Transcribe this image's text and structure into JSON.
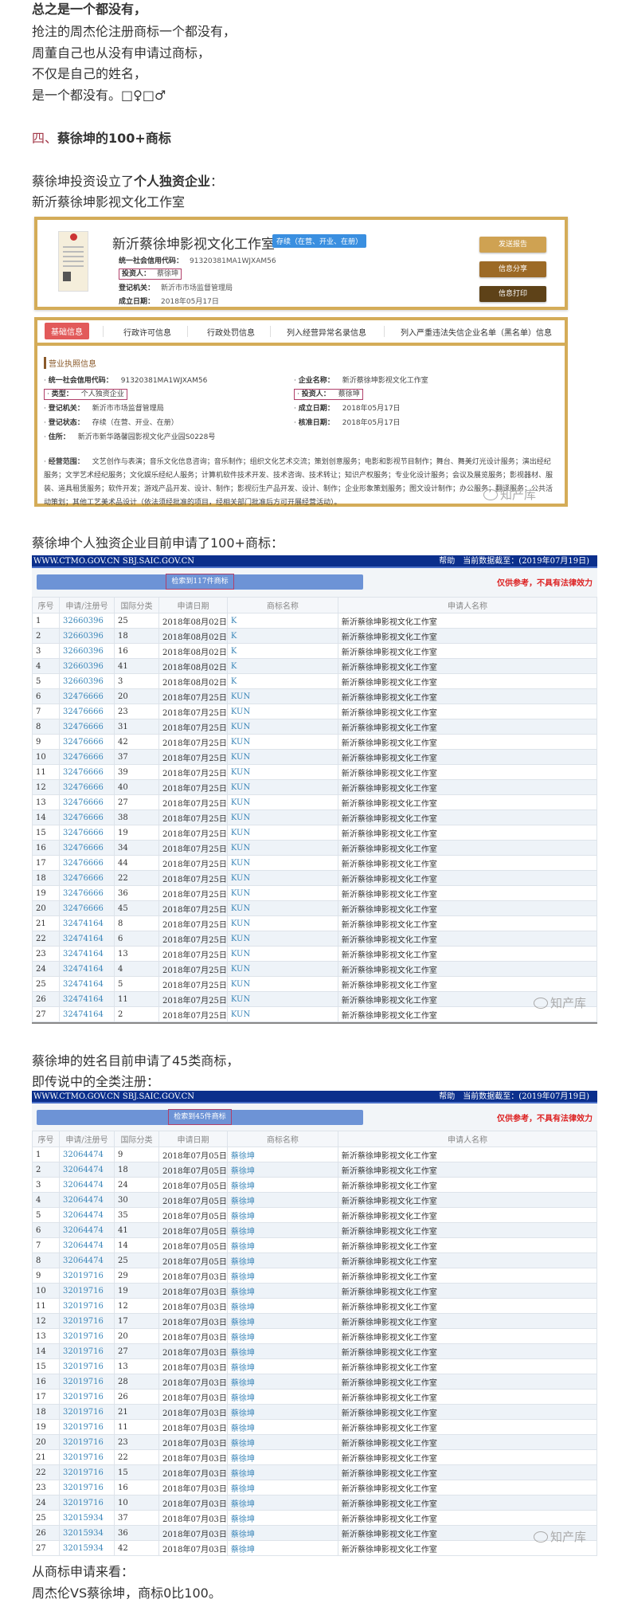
{
  "intro": {
    "line1": "总之是一个都没有，",
    "line2": "抢注的周杰伦注册商标一个都没有，",
    "line3": "周董自己也从没有申请过商标，",
    "line4": "不仅是自己的姓名，",
    "line5": "是一个都没有。□♀□♂"
  },
  "section": {
    "number": "四、",
    "title": "蔡徐坤的100+商标"
  },
  "para1": {
    "prefix": "蔡徐坤投资设立了",
    "bold": "个人独资企业",
    "suffix": "：",
    "line2": "新沂蔡徐坤影视文化工作室"
  },
  "company_card": {
    "name": "新沂蔡徐坤影视文化工作室",
    "status": "存续（在营、开业、在册）",
    "fields": [
      {
        "label": "统一社会信用代码：",
        "value": "91320381MA1WJXAM56"
      },
      {
        "label": "投资人：",
        "value": "蔡徐坤"
      },
      {
        "label": "登记机关：",
        "value": "新沂市市场监督管理局"
      },
      {
        "label": "成立日期：",
        "value": "2018年05月17日"
      }
    ],
    "buttons": [
      {
        "label": "发送报告",
        "color": "#cfa252"
      },
      {
        "label": "信息分享",
        "color": "#9c6a26"
      },
      {
        "label": "信息打印",
        "color": "#5e4218"
      }
    ]
  },
  "detail_card": {
    "tabs": [
      "基础信息",
      "行政许可信息",
      "行政处罚信息",
      "列入经营异常名录信息",
      "列入严重违法失信企业名单（黑名单）信息"
    ],
    "section_title": "营业执照信息",
    "left": [
      {
        "label": "统一社会信用代码：",
        "value": "91320381MA1WJXAM56"
      },
      {
        "label": "类型：",
        "value": "个人独资企业"
      },
      {
        "label": "登记机关：",
        "value": "新沂市市场监督管理局"
      },
      {
        "label": "登记状态：",
        "value": "存续（在营、开业、在册）"
      },
      {
        "label": "住所：",
        "value": "新沂市新华路馨园影视文化产业园S0228号"
      }
    ],
    "right": [
      {
        "label": "企业名称：",
        "value": "新沂蔡徐坤影视文化工作室"
      },
      {
        "label": "投资人：",
        "value": "蔡徐坤"
      },
      {
        "label": "成立日期：",
        "value": "2018年05月17日"
      },
      {
        "label": "核准日期：",
        "value": "2018年05月17日"
      }
    ],
    "scope_label": "经营范围：",
    "scope": "文艺创作与表演；音乐文化信息咨询；音乐制作；组织文化艺术交流；策划创意服务；电影和影视节目制作；舞台、舞美灯光设计服务；演出经纪服务；文学艺术经纪服务；文化娱乐经纪人服务；计算机软件技术开发、技术咨询、技术转让；知识产权服务；专业化设计服务；会议及展览服务；影视器材、服装、道具租赁服务；软件开发；游戏产品开发、设计、制作；影视衍生产品开发、设计、制作；企业形象策划服务；图文设计制作；办公服务；翻译服务；公共活动策划；其他工艺美术品设计（依法须经批准的项目，经相关部门批准后方可开展经营活动）。"
  },
  "watermark": "知产库",
  "para2": "蔡徐坤个人独资企业目前申请了100+商标：",
  "common": {
    "site": "WWW.CTMO.GOV.CN SBJ.SAIC.GOV.CN",
    "help": "帮助",
    "data_date": "当前数据截至：(2019年07月19日)",
    "note": "仅供参考，不具有法律效力",
    "headers": [
      "序号",
      "申请/注册号",
      "国际分类",
      "申请日期",
      "商标名称",
      "申请人名称"
    ]
  },
  "table1": {
    "result": "检索到117件商标",
    "rows": [
      [
        "1",
        "32660396",
        "25",
        "2018年08月02日",
        "K",
        "新沂蔡徐坤影视文化工作室"
      ],
      [
        "2",
        "32660396",
        "18",
        "2018年08月02日",
        "K",
        "新沂蔡徐坤影视文化工作室"
      ],
      [
        "3",
        "32660396",
        "16",
        "2018年08月02日",
        "K",
        "新沂蔡徐坤影视文化工作室"
      ],
      [
        "4",
        "32660396",
        "41",
        "2018年08月02日",
        "K",
        "新沂蔡徐坤影视文化工作室"
      ],
      [
        "5",
        "32660396",
        "3",
        "2018年08月02日",
        "K",
        "新沂蔡徐坤影视文化工作室"
      ],
      [
        "6",
        "32476666",
        "20",
        "2018年07月25日",
        "KUN",
        "新沂蔡徐坤影视文化工作室"
      ],
      [
        "7",
        "32476666",
        "23",
        "2018年07月25日",
        "KUN",
        "新沂蔡徐坤影视文化工作室"
      ],
      [
        "8",
        "32476666",
        "31",
        "2018年07月25日",
        "KUN",
        "新沂蔡徐坤影视文化工作室"
      ],
      [
        "9",
        "32476666",
        "42",
        "2018年07月25日",
        "KUN",
        "新沂蔡徐坤影视文化工作室"
      ],
      [
        "10",
        "32476666",
        "37",
        "2018年07月25日",
        "KUN",
        "新沂蔡徐坤影视文化工作室"
      ],
      [
        "11",
        "32476666",
        "39",
        "2018年07月25日",
        "KUN",
        "新沂蔡徐坤影视文化工作室"
      ],
      [
        "12",
        "32476666",
        "40",
        "2018年07月25日",
        "KUN",
        "新沂蔡徐坤影视文化工作室"
      ],
      [
        "13",
        "32476666",
        "27",
        "2018年07月25日",
        "KUN",
        "新沂蔡徐坤影视文化工作室"
      ],
      [
        "14",
        "32476666",
        "38",
        "2018年07月25日",
        "KUN",
        "新沂蔡徐坤影视文化工作室"
      ],
      [
        "15",
        "32476666",
        "19",
        "2018年07月25日",
        "KUN",
        "新沂蔡徐坤影视文化工作室"
      ],
      [
        "16",
        "32476666",
        "34",
        "2018年07月25日",
        "KUN",
        "新沂蔡徐坤影视文化工作室"
      ],
      [
        "17",
        "32476666",
        "44",
        "2018年07月25日",
        "KUN",
        "新沂蔡徐坤影视文化工作室"
      ],
      [
        "18",
        "32476666",
        "22",
        "2018年07月25日",
        "KUN",
        "新沂蔡徐坤影视文化工作室"
      ],
      [
        "19",
        "32476666",
        "36",
        "2018年07月25日",
        "KUN",
        "新沂蔡徐坤影视文化工作室"
      ],
      [
        "20",
        "32476666",
        "45",
        "2018年07月25日",
        "KUN",
        "新沂蔡徐坤影视文化工作室"
      ],
      [
        "21",
        "32474164",
        "8",
        "2018年07月25日",
        "KUN",
        "新沂蔡徐坤影视文化工作室"
      ],
      [
        "22",
        "32474164",
        "6",
        "2018年07月25日",
        "KUN",
        "新沂蔡徐坤影视文化工作室"
      ],
      [
        "23",
        "32474164",
        "13",
        "2018年07月25日",
        "KUN",
        "新沂蔡徐坤影视文化工作室"
      ],
      [
        "24",
        "32474164",
        "4",
        "2018年07月25日",
        "KUN",
        "新沂蔡徐坤影视文化工作室"
      ],
      [
        "25",
        "32474164",
        "5",
        "2018年07月25日",
        "KUN",
        "新沂蔡徐坤影视文化工作室"
      ],
      [
        "26",
        "32474164",
        "11",
        "2018年07月25日",
        "KUN",
        "新沂蔡徐坤影视文化工作室"
      ],
      [
        "27",
        "32474164",
        "2",
        "2018年07月25日",
        "KUN",
        "新沂蔡徐坤影视文化工作室"
      ]
    ]
  },
  "para3": {
    "line1": "蔡徐坤的姓名目前申请了45类商标，",
    "line2": "即传说中的全类注册："
  },
  "table2": {
    "result": "检索到45件商标",
    "rows": [
      [
        "1",
        "32064474",
        "9",
        "2018年07月05日",
        "蔡徐坤",
        "新沂蔡徐坤影视文化工作室"
      ],
      [
        "2",
        "32064474",
        "18",
        "2018年07月05日",
        "蔡徐坤",
        "新沂蔡徐坤影视文化工作室"
      ],
      [
        "3",
        "32064474",
        "24",
        "2018年07月05日",
        "蔡徐坤",
        "新沂蔡徐坤影视文化工作室"
      ],
      [
        "4",
        "32064474",
        "30",
        "2018年07月05日",
        "蔡徐坤",
        "新沂蔡徐坤影视文化工作室"
      ],
      [
        "5",
        "32064474",
        "35",
        "2018年07月05日",
        "蔡徐坤",
        "新沂蔡徐坤影视文化工作室"
      ],
      [
        "6",
        "32064474",
        "41",
        "2018年07月05日",
        "蔡徐坤",
        "新沂蔡徐坤影视文化工作室"
      ],
      [
        "7",
        "32064474",
        "14",
        "2018年07月05日",
        "蔡徐坤",
        "新沂蔡徐坤影视文化工作室"
      ],
      [
        "8",
        "32064474",
        "25",
        "2018年07月05日",
        "蔡徐坤",
        "新沂蔡徐坤影视文化工作室"
      ],
      [
        "9",
        "32019716",
        "29",
        "2018年07月03日",
        "蔡徐坤",
        "新沂蔡徐坤影视文化工作室"
      ],
      [
        "10",
        "32019716",
        "19",
        "2018年07月03日",
        "蔡徐坤",
        "新沂蔡徐坤影视文化工作室"
      ],
      [
        "11",
        "32019716",
        "12",
        "2018年07月03日",
        "蔡徐坤",
        "新沂蔡徐坤影视文化工作室"
      ],
      [
        "12",
        "32019716",
        "17",
        "2018年07月03日",
        "蔡徐坤",
        "新沂蔡徐坤影视文化工作室"
      ],
      [
        "13",
        "32019716",
        "20",
        "2018年07月03日",
        "蔡徐坤",
        "新沂蔡徐坤影视文化工作室"
      ],
      [
        "14",
        "32019716",
        "27",
        "2018年07月03日",
        "蔡徐坤",
        "新沂蔡徐坤影视文化工作室"
      ],
      [
        "15",
        "32019716",
        "13",
        "2018年07月03日",
        "蔡徐坤",
        "新沂蔡徐坤影视文化工作室"
      ],
      [
        "16",
        "32019716",
        "28",
        "2018年07月03日",
        "蔡徐坤",
        "新沂蔡徐坤影视文化工作室"
      ],
      [
        "17",
        "32019716",
        "26",
        "2018年07月03日",
        "蔡徐坤",
        "新沂蔡徐坤影视文化工作室"
      ],
      [
        "18",
        "32019716",
        "21",
        "2018年07月03日",
        "蔡徐坤",
        "新沂蔡徐坤影视文化工作室"
      ],
      [
        "19",
        "32019716",
        "11",
        "2018年07月03日",
        "蔡徐坤",
        "新沂蔡徐坤影视文化工作室"
      ],
      [
        "20",
        "32019716",
        "23",
        "2018年07月03日",
        "蔡徐坤",
        "新沂蔡徐坤影视文化工作室"
      ],
      [
        "21",
        "32019716",
        "22",
        "2018年07月03日",
        "蔡徐坤",
        "新沂蔡徐坤影视文化工作室"
      ],
      [
        "22",
        "32019716",
        "15",
        "2018年07月03日",
        "蔡徐坤",
        "新沂蔡徐坤影视文化工作室"
      ],
      [
        "23",
        "32019716",
        "16",
        "2018年07月03日",
        "蔡徐坤",
        "新沂蔡徐坤影视文化工作室"
      ],
      [
        "24",
        "32019716",
        "10",
        "2018年07月03日",
        "蔡徐坤",
        "新沂蔡徐坤影视文化工作室"
      ],
      [
        "25",
        "32015934",
        "37",
        "2018年07月03日",
        "蔡徐坤",
        "新沂蔡徐坤影视文化工作室"
      ],
      [
        "26",
        "32015934",
        "36",
        "2018年07月03日",
        "蔡徐坤",
        "新沂蔡徐坤影视文化工作室"
      ],
      [
        "27",
        "32015934",
        "42",
        "2018年07月03日",
        "蔡徐坤",
        "新沂蔡徐坤影视文化工作室"
      ]
    ]
  },
  "conclusion": {
    "line1": "从商标申请来看：",
    "line2": "周杰伦VS蔡徐坤，商标0比100。"
  }
}
